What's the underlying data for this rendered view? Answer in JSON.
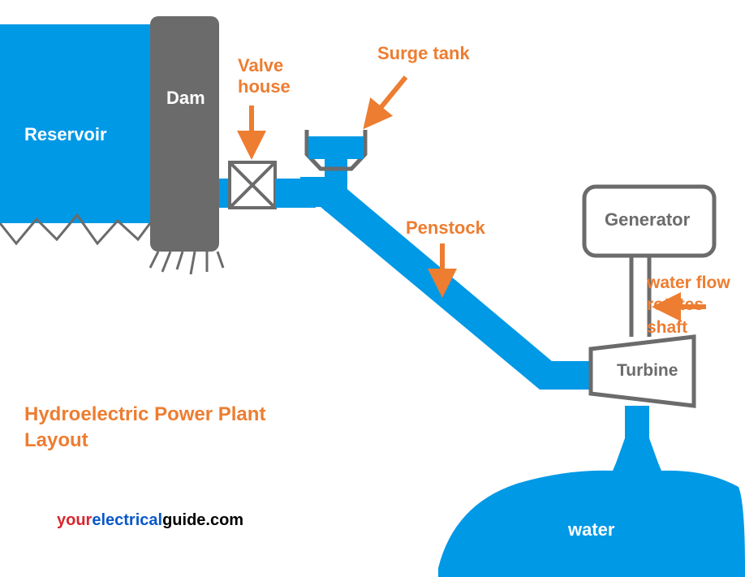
{
  "colors": {
    "water": "#0099e6",
    "dam": "#6b6b6b",
    "outline": "#6b6b6b",
    "orange": "#ed7d31",
    "white": "#ffffff",
    "blue_accent": "#0a58c9",
    "black": "#000000",
    "bg": "#ffffff"
  },
  "labels": {
    "reservoir": "Reservoir",
    "dam": "Dam",
    "valve_house": "Valve house",
    "surge_tank": "Surge tank",
    "penstock": "Penstock",
    "generator": "Generator",
    "turbine": "Turbine",
    "shaft_note_1": "water flow",
    "shaft_note_2": "rotates shaft",
    "title_1": "Hydroelectric Power Plant",
    "title_2": "Layout",
    "water": "water",
    "url_you": "your",
    "url_electrical": "electrical",
    "url_guide": "guide.com"
  },
  "font_sizes": {
    "label": 22,
    "title": 24,
    "small": 21,
    "url": 20
  },
  "diagram": {
    "type": "flowchart",
    "stroke_width": 4,
    "arrow_stroke": 5,
    "nodes": [
      {
        "id": "reservoir",
        "shape": "water-body"
      },
      {
        "id": "dam",
        "shape": "rect"
      },
      {
        "id": "valve",
        "shape": "box-x"
      },
      {
        "id": "surge_tank",
        "shape": "tank"
      },
      {
        "id": "penstock",
        "shape": "pipe"
      },
      {
        "id": "turbine",
        "shape": "trapezoid"
      },
      {
        "id": "generator",
        "shape": "rounded-rect"
      },
      {
        "id": "tailrace",
        "shape": "water-body"
      }
    ]
  }
}
